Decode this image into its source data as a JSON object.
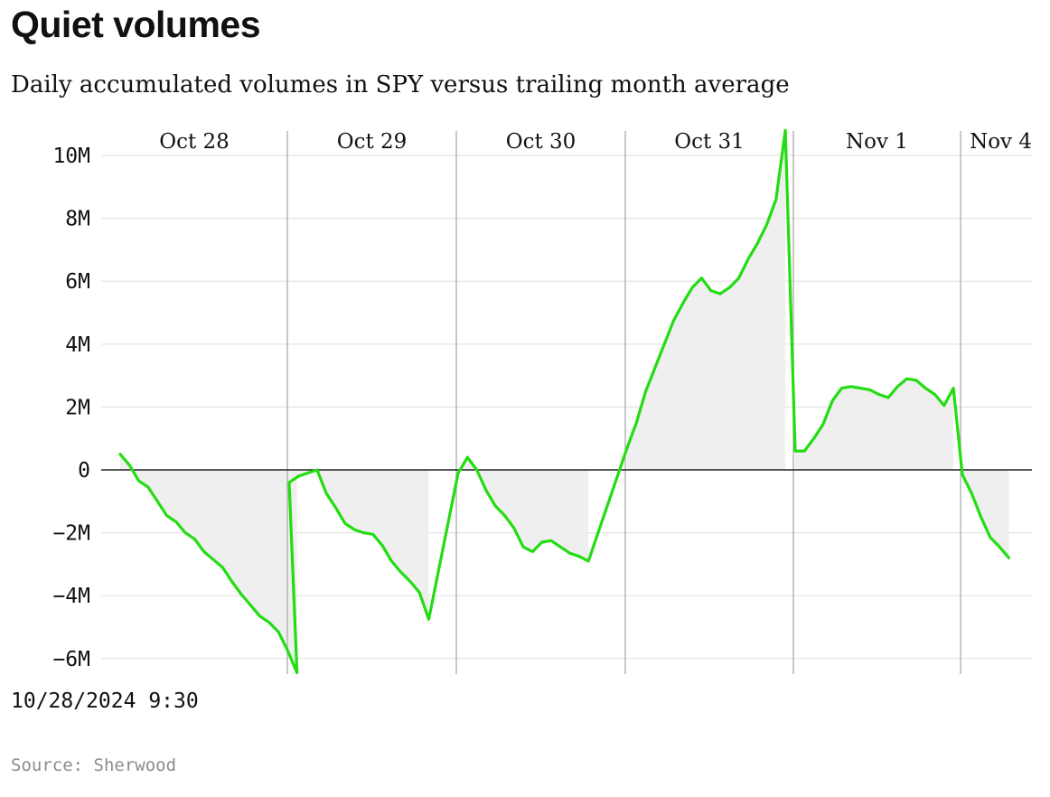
{
  "chart_data": {
    "type": "area",
    "title": "Quiet volumes",
    "subtitle": "Daily accumulated volumes in SPY versus trailing month average",
    "source": "Source: Sherwood",
    "xlabel": "",
    "ylabel": "",
    "ylim": [
      -6500000,
      10800000
    ],
    "y_ticks": [
      10000000,
      8000000,
      6000000,
      4000000,
      2000000,
      0,
      -2000000,
      -4000000,
      -6000000
    ],
    "y_tick_labels": [
      "10M",
      "8M",
      "6M",
      "4M",
      "2M",
      "0",
      "−2M",
      "−4M",
      "−6M"
    ],
    "x_tick_label": "10/28/2024 9:30",
    "grid": true,
    "line_color": "#22dd11",
    "fill_color": "#efefef",
    "days": [
      {
        "label": "Oct 28",
        "values": [
          500000,
          150000,
          -350000,
          -550000,
          -1000000,
          -1450000,
          -1650000,
          -2000000,
          -2200000,
          -2600000,
          -2850000,
          -3100000,
          -3550000,
          -3950000,
          -4300000,
          -4650000,
          -4850000,
          -5150000,
          -5750000,
          -6450000
        ]
      },
      {
        "label": "Oct 29",
        "values": [
          -400000,
          -200000,
          -100000,
          0,
          -750000,
          -1200000,
          -1700000,
          -1900000,
          -2000000,
          -2050000,
          -2400000,
          -2900000,
          -3250000,
          -3550000,
          -3900000,
          -4750000
        ]
      },
      {
        "label": "Oct 30",
        "values": [
          -100000,
          400000,
          0,
          -650000,
          -1150000,
          -1450000,
          -1850000,
          -2450000,
          -2600000,
          -2300000,
          -2250000,
          -2450000,
          -2650000,
          -2750000,
          -2900000
        ]
      },
      {
        "label": "Oct 31",
        "values": [
          700000,
          1500000,
          2500000,
          3250000,
          4000000,
          4750000,
          5300000,
          5800000,
          6100000,
          5700000,
          5600000,
          5800000,
          6100000,
          6700000,
          7200000,
          7800000,
          8600000,
          10800000
        ]
      },
      {
        "label": "Nov 1",
        "values": [
          600000,
          600000,
          1000000,
          1450000,
          2200000,
          2600000,
          2650000,
          2600000,
          2550000,
          2400000,
          2300000,
          2650000,
          2900000,
          2850000,
          2600000,
          2400000,
          2050000,
          2600000
        ]
      },
      {
        "label": "Nov 4",
        "values": [
          -150000,
          -750000,
          -1500000,
          -2150000,
          -2450000,
          -2800000
        ]
      }
    ]
  }
}
